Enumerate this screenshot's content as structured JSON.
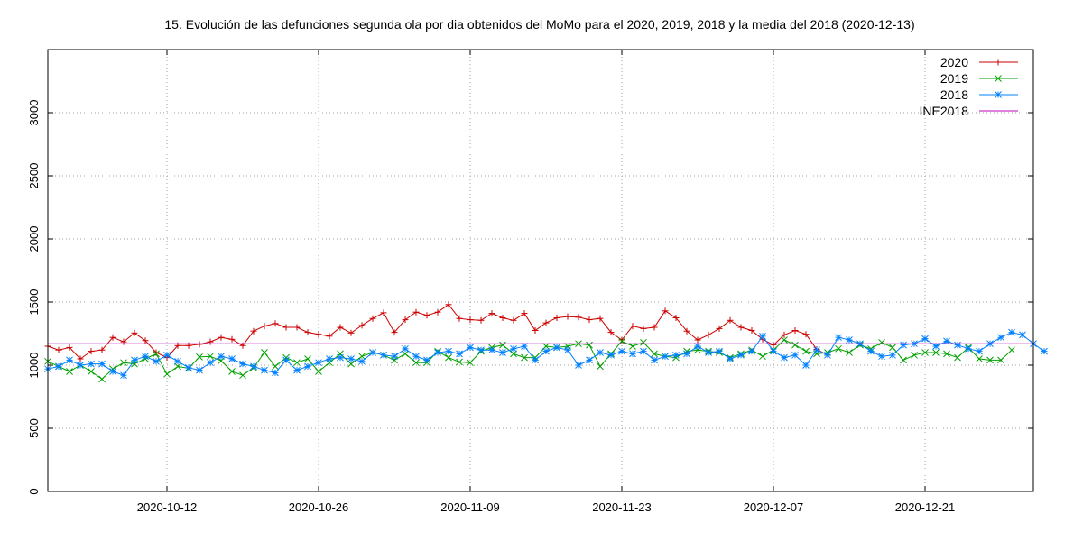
{
  "chart_data": {
    "type": "line",
    "title": "15. Evolución de las defunciones segunda ola por dia obtenidos del MoMo para el 2020, 2019, 2018 y la media del 2018 (2020-12-13)",
    "xlabel": "",
    "ylabel": "",
    "x_start": "2020-10-01",
    "x_end": "2020-12-31",
    "ylim": [
      0,
      3500
    ],
    "yticks": [
      0,
      500,
      1000,
      1500,
      2000,
      2500,
      3000
    ],
    "xticks": [
      "2020-10-12",
      "2020-10-26",
      "2020-11-09",
      "2020-11-23",
      "2020-12-07",
      "2020-12-21"
    ],
    "grid": true,
    "legend_position": "top-right",
    "series": [
      {
        "name": "2020",
        "color": "#cc0000",
        "marker": "plus",
        "values": [
          1150,
          1120,
          1140,
          1050,
          1110,
          1120,
          1220,
          1185,
          1255,
          1195,
          1100,
          1060,
          1155,
          1155,
          1165,
          1185,
          1220,
          1205,
          1155,
          1270,
          1310,
          1330,
          1300,
          1300,
          1260,
          1245,
          1230,
          1300,
          1255,
          1315,
          1370,
          1415,
          1260,
          1360,
          1420,
          1395,
          1420,
          1480,
          1370,
          1360,
          1355,
          1410,
          1375,
          1355,
          1410,
          1275,
          1335,
          1375,
          1385,
          1380,
          1360,
          1370,
          1260,
          1200,
          1310,
          1290,
          1300,
          1430,
          1375,
          1270,
          1200,
          1240,
          1290,
          1355,
          1300,
          1275,
          1205,
          1160,
          1240,
          1275,
          1245,
          1125,
          1080
        ]
      },
      {
        "name": "2019",
        "color": "#00a000",
        "marker": "x",
        "values": [
          1030,
          990,
          950,
          1000,
          950,
          890,
          970,
          1020,
          1010,
          1050,
          1090,
          930,
          990,
          975,
          1065,
          1070,
          1035,
          950,
          920,
          980,
          1100,
          990,
          1060,
          1020,
          1050,
          950,
          1020,
          1090,
          1010,
          1070,
          1100,
          1080,
          1040,
          1090,
          1020,
          1020,
          1110,
          1060,
          1025,
          1020,
          1110,
          1140,
          1160,
          1090,
          1060,
          1060,
          1150,
          1140,
          1150,
          1170,
          1160,
          990,
          1090,
          1190,
          1150,
          1180,
          1090,
          1070,
          1060,
          1110,
          1120,
          1110,
          1100,
          1060,
          1090,
          1120,
          1070,
          1120,
          1200,
          1160,
          1110,
          1090,
          1100,
          1130,
          1100,
          1160,
          1130,
          1180,
          1140,
          1040,
          1080,
          1100,
          1100,
          1090,
          1060,
          1140,
          1050,
          1040,
          1040,
          1120
        ]
      },
      {
        "name": "2018",
        "color": "#0080ff",
        "marker": "star",
        "values": [
          970,
          990,
          1040,
          1000,
          1010,
          1010,
          950,
          920,
          1040,
          1070,
          1030,
          1080,
          1030,
          980,
          960,
          1020,
          1070,
          1050,
          1010,
          990,
          960,
          940,
          1040,
          960,
          990,
          1020,
          1050,
          1060,
          1050,
          1030,
          1100,
          1080,
          1070,
          1130,
          1070,
          1040,
          1100,
          1110,
          1090,
          1140,
          1120,
          1120,
          1100,
          1130,
          1150,
          1040,
          1110,
          1140,
          1120,
          1000,
          1040,
          1100,
          1080,
          1110,
          1090,
          1110,
          1040,
          1070,
          1080,
          1090,
          1150,
          1100,
          1110,
          1050,
          1080,
          1110,
          1230,
          1110,
          1060,
          1080,
          1000,
          1120,
          1080,
          1220,
          1200,
          1170,
          1110,
          1070,
          1080,
          1160,
          1170,
          1210,
          1150,
          1190,
          1160,
          1130,
          1110,
          1170,
          1220,
          1260,
          1240,
          1170,
          1110
        ]
      },
      {
        "name": "INE2018",
        "color": "#c000c0",
        "marker": "none",
        "constant": 1170
      }
    ]
  }
}
